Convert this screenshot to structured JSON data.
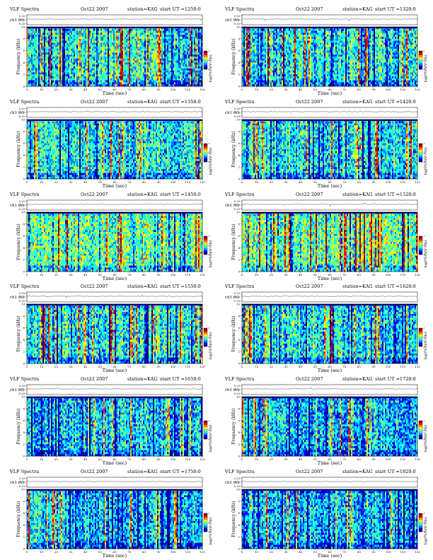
{
  "page": {
    "y_top_label": "ch1 (V)",
    "y_freq_label": "Frequency (kHz)",
    "x_label": "Time (sec)",
    "cbar_label": "log(PSD)(V²/Hz)",
    "cbar_ticks": [
      "-5",
      "-4",
      "-3"
    ]
  },
  "colors": {
    "scale": [
      "#00007f",
      "#0000ff",
      "#0080ff",
      "#00ffff",
      "#80ff80",
      "#ffff00",
      "#ff8000",
      "#ff0000",
      "#7f0000"
    ]
  },
  "chart_data": [
    {
      "type": "heatmap",
      "title": "VLF Spectra",
      "date": "Oct22 2007",
      "station": "station=KAG",
      "start": "start UT =1250:0",
      "x_ticks": [
        "0",
        "10",
        "20",
        "30",
        "40",
        "50",
        "60",
        "70",
        "80",
        "90",
        "100",
        "110",
        "120"
      ],
      "y_ticks": [
        "0",
        "2",
        "4",
        "6",
        "8",
        "10"
      ],
      "xlim": [
        0,
        120
      ],
      "ylim": [
        0,
        10
      ],
      "top_ticks": [
        "0.20",
        "0.00",
        "-0.20"
      ],
      "intensity": "medium"
    },
    {
      "type": "heatmap",
      "title": "VLF Spectra",
      "date": "Oct22 2007",
      "station": "station=KAG",
      "start": "start UT =1320:0",
      "x_ticks": [
        "0",
        "10",
        "20",
        "30",
        "40",
        "50",
        "60",
        "70",
        "80",
        "90",
        "100",
        "110",
        "120"
      ],
      "y_ticks": [
        "0",
        "2",
        "4",
        "6",
        "8",
        "10"
      ],
      "xlim": [
        0,
        120
      ],
      "ylim": [
        0,
        10
      ],
      "top_ticks": [
        "0.20",
        "0.00",
        "-0.20"
      ],
      "intensity": "medium"
    },
    {
      "type": "heatmap",
      "title": "VLF Spectra",
      "date": "Oct22 2007",
      "station": "station=KAG",
      "start": "start UT =1350:0",
      "x_ticks": [
        "0",
        "10",
        "20",
        "30",
        "40",
        "50",
        "60",
        "70",
        "80",
        "90",
        "100",
        "110",
        "120"
      ],
      "y_ticks": [
        "0",
        "2",
        "4",
        "6",
        "8",
        "10"
      ],
      "xlim": [
        0,
        120
      ],
      "ylim": [
        0,
        10
      ],
      "top_ticks": [
        "0.20",
        "0.00",
        "-0.20"
      ],
      "intensity": "medium"
    },
    {
      "type": "heatmap",
      "title": "VLF Spectra",
      "date": "Oct22 2007",
      "station": "station=KAG",
      "start": "start UT =1420:0",
      "x_ticks": [
        "0",
        "10",
        "20",
        "30",
        "40",
        "50",
        "60",
        "70",
        "80",
        "90",
        "100",
        "110",
        "120"
      ],
      "y_ticks": [
        "0",
        "2",
        "4",
        "6",
        "8",
        "10"
      ],
      "xlim": [
        0,
        120
      ],
      "ylim": [
        0,
        10
      ],
      "top_ticks": [
        "0.20",
        "0.00",
        "-0.20"
      ],
      "intensity": "medium"
    },
    {
      "type": "heatmap",
      "title": "VLF Spectra",
      "date": "Oct22 2007",
      "station": "station=KAG",
      "start": "start UT =1450:0",
      "x_ticks": [
        "0",
        "10",
        "20",
        "30",
        "40",
        "50",
        "60",
        "70",
        "80",
        "90",
        "100",
        "110",
        "120"
      ],
      "y_ticks": [
        "0",
        "2",
        "4",
        "6",
        "8",
        "10"
      ],
      "xlim": [
        0,
        120
      ],
      "ylim": [
        0,
        10
      ],
      "top_ticks": [
        "0.20",
        "0.00",
        "-0.20"
      ],
      "intensity": "high"
    },
    {
      "type": "heatmap",
      "title": "VLF Spectra",
      "date": "Oct22 2007",
      "station": "station=KAG",
      "start": "start UT =1520:0",
      "x_ticks": [
        "0",
        "10",
        "20",
        "30",
        "40",
        "50",
        "60",
        "70",
        "80",
        "90",
        "100",
        "110",
        "120"
      ],
      "y_ticks": [
        "0",
        "2",
        "4",
        "6",
        "8",
        "10"
      ],
      "xlim": [
        0,
        120
      ],
      "ylim": [
        0,
        10
      ],
      "top_ticks": [
        "0.20",
        "0.00",
        "-0.20"
      ],
      "intensity": "high"
    },
    {
      "type": "heatmap",
      "title": "VLF Spectra",
      "date": "Oct22 2007",
      "station": "station=KAG",
      "start": "start UT =1550:0",
      "x_ticks": [
        "0",
        "10",
        "20",
        "30",
        "40",
        "50",
        "60",
        "70",
        "80",
        "90",
        "100",
        "110",
        "120"
      ],
      "y_ticks": [
        "0",
        "2",
        "4",
        "6",
        "8",
        "10"
      ],
      "xlim": [
        0,
        120
      ],
      "ylim": [
        0,
        10
      ],
      "top_ticks": [
        "0.20",
        "0.00",
        "-0.20"
      ],
      "intensity": "medium"
    },
    {
      "type": "heatmap",
      "title": "VLF Spectra",
      "date": "Oct22 2007",
      "station": "station=KAG",
      "start": "start UT =1620:0",
      "x_ticks": [
        "0",
        "10",
        "20",
        "30",
        "40",
        "50",
        "60",
        "70",
        "80",
        "90",
        "100",
        "110",
        "120"
      ],
      "y_ticks": [
        "0",
        "2",
        "4",
        "6",
        "8",
        "10"
      ],
      "xlim": [
        0,
        120
      ],
      "ylim": [
        0,
        10
      ],
      "top_ticks": [
        "0.20",
        "0.00",
        "-0.20"
      ],
      "intensity": "medium"
    },
    {
      "type": "heatmap",
      "title": "VLF Spectra",
      "date": "Oct22 2007",
      "station": "station=KAG",
      "start": "start UT =1650:0",
      "x_ticks": [
        "0",
        "10",
        "20",
        "30",
        "40",
        "50",
        "60",
        "70",
        "80",
        "90",
        "100",
        "110",
        "120"
      ],
      "y_ticks": [
        "0",
        "2",
        "4",
        "6",
        "8",
        "10"
      ],
      "xlim": [
        0,
        120
      ],
      "ylim": [
        0,
        10
      ],
      "top_ticks": [
        "0.20",
        "0.00",
        "-0.20"
      ],
      "intensity": "low"
    },
    {
      "type": "heatmap",
      "title": "VLF Spectra",
      "date": "Oct22 2007",
      "station": "station=KAG",
      "start": "start UT =1720:0",
      "x_ticks": [
        "0",
        "10",
        "20",
        "30",
        "40",
        "50",
        "60",
        "70",
        "80",
        "90",
        "100",
        "110",
        "120"
      ],
      "y_ticks": [
        "0",
        "2",
        "4",
        "6",
        "8",
        "10"
      ],
      "xlim": [
        0,
        120
      ],
      "ylim": [
        0,
        10
      ],
      "top_ticks": [
        "0.20",
        "0.00",
        "-0.20"
      ],
      "intensity": "low"
    },
    {
      "type": "heatmap",
      "title": "VLF Spectra",
      "date": "Oct22 2007",
      "station": "station=KAG",
      "start": "start UT =1750:0",
      "x_ticks": [
        "0",
        "10",
        "20",
        "30",
        "40",
        "50",
        "60",
        "70",
        "80",
        "90",
        "100",
        "110",
        "120"
      ],
      "y_ticks": [
        "0",
        "2",
        "4",
        "6",
        "8",
        "10"
      ],
      "xlim": [
        0,
        120
      ],
      "ylim": [
        0,
        10
      ],
      "top_ticks": [
        "0.20",
        "0.00",
        "-0.20"
      ],
      "intensity": "low"
    },
    {
      "type": "heatmap",
      "title": "VLF Spectra",
      "date": "Oct22 2007",
      "station": "station=KAG",
      "start": "start UT =1820:0",
      "x_ticks": [
        "0",
        "10",
        "20",
        "30",
        "40",
        "50",
        "60",
        "70",
        "80",
        "90",
        "100",
        "110",
        "120"
      ],
      "y_ticks": [
        "0",
        "2",
        "4",
        "6",
        "8",
        "10"
      ],
      "xlim": [
        0,
        120
      ],
      "ylim": [
        0,
        10
      ],
      "top_ticks": [
        "0.20",
        "0.00",
        "-0.20"
      ],
      "intensity": "low"
    }
  ]
}
